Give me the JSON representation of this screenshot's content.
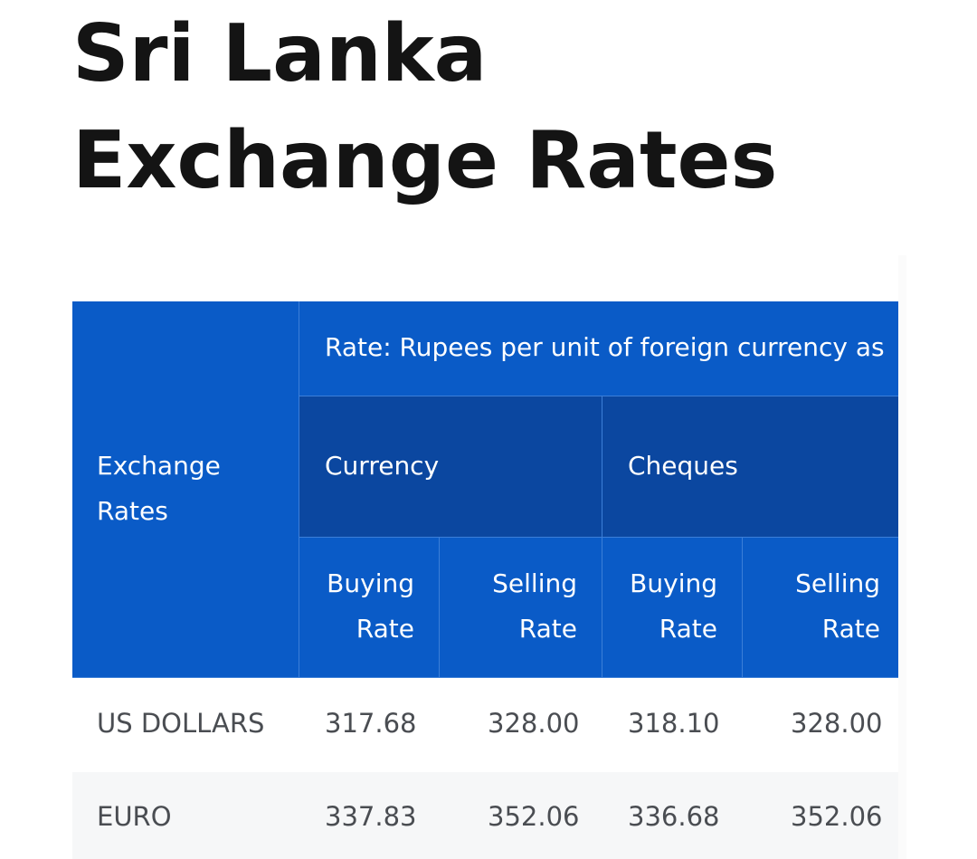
{
  "title": "Sri Lanka Exchange Rates",
  "table": {
    "corner_header": "Exchange Rates",
    "group_header": "Rate: Rupees per unit of foreign currency as",
    "sub_groups": [
      "Currency",
      "Cheques"
    ],
    "columns": {
      "currency_buying": "Buying Rate",
      "currency_selling": "Selling Rate",
      "cheques_buying": "Buying Rate",
      "cheques_selling": "Selling Rate"
    },
    "rows": [
      {
        "name": "US DOLLARS",
        "currency_buying": "317.68",
        "currency_selling": "328.00",
        "cheques_buying": "318.10",
        "cheques_selling": "328.00"
      },
      {
        "name": "EURO",
        "currency_buying": "337.83",
        "currency_selling": "352.06",
        "cheques_buying": "336.68",
        "cheques_selling": "352.06"
      }
    ]
  }
}
